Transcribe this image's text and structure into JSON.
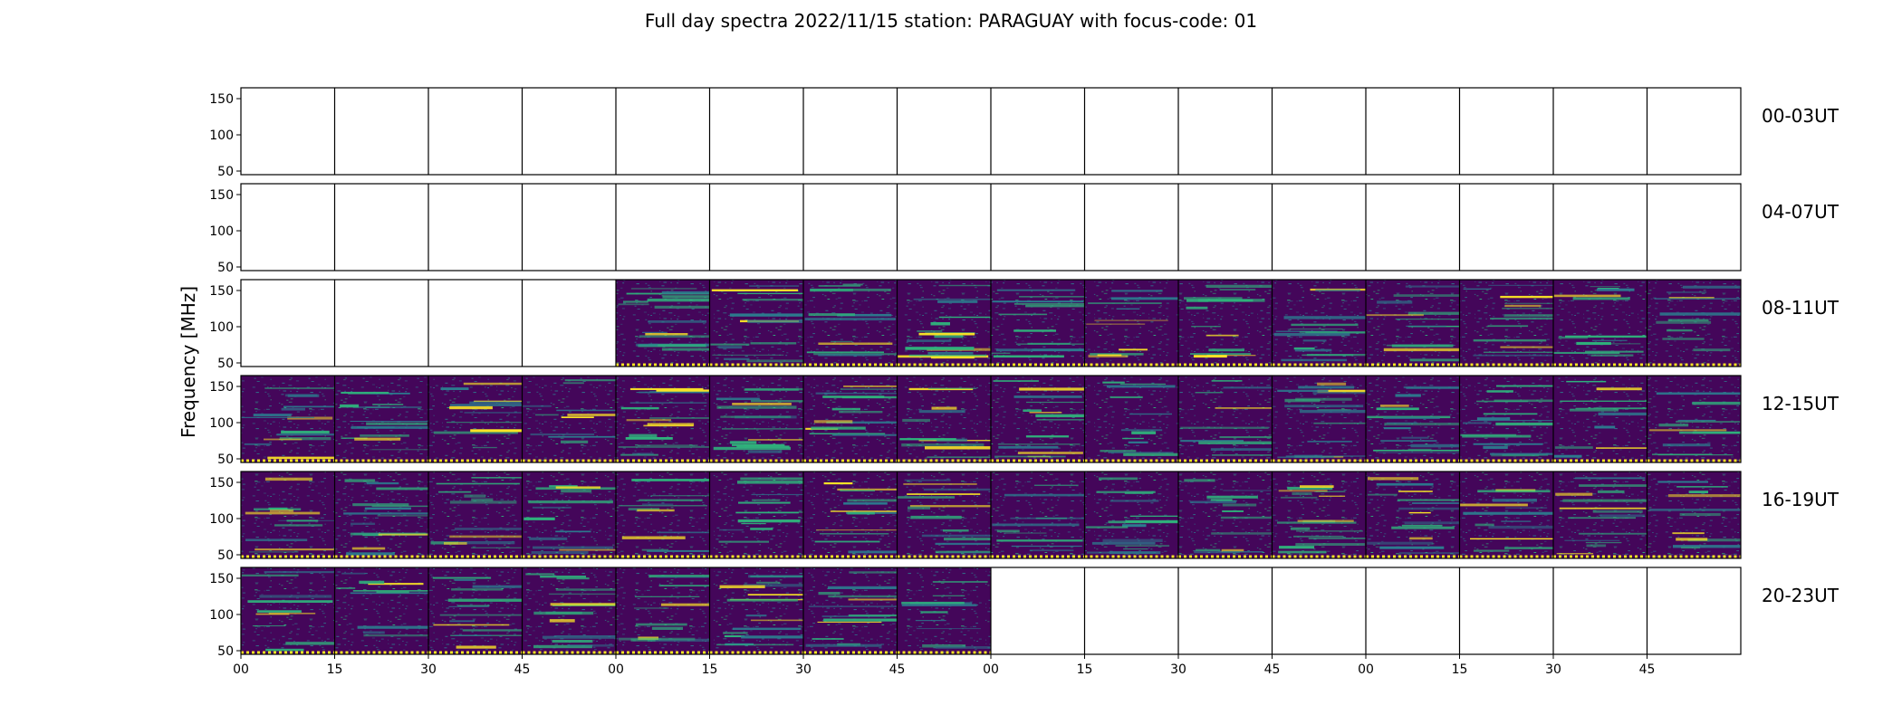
{
  "chart_data": {
    "type": "heatmap",
    "title": "Full day spectra 2022/11/15 station: PARAGUAY with focus-code: 01",
    "ylabel": "Frequency [MHz]",
    "y_ticks": [
      50,
      100,
      150
    ],
    "ylim": [
      45,
      165
    ],
    "x_tick_labels": [
      "00",
      "15",
      "30",
      "45",
      "00",
      "15",
      "30",
      "45",
      "00",
      "15",
      "30",
      "45",
      "00",
      "15",
      "30",
      "45"
    ],
    "panels_per_row": 16,
    "panel_minutes": 15,
    "rows": [
      {
        "label": "00-03UT",
        "data_present": [
          0,
          0,
          0,
          0,
          0,
          0,
          0,
          0,
          0,
          0,
          0,
          0,
          0,
          0,
          0,
          0
        ]
      },
      {
        "label": "04-07UT",
        "data_present": [
          0,
          0,
          0,
          0,
          0,
          0,
          0,
          0,
          0,
          0,
          0,
          0,
          0,
          0,
          0,
          0
        ]
      },
      {
        "label": "08-11UT",
        "data_present": [
          0,
          0,
          0,
          0,
          1,
          1,
          1,
          1,
          1,
          1,
          1,
          1,
          1,
          1,
          1,
          1
        ]
      },
      {
        "label": "12-15UT",
        "data_present": [
          1,
          1,
          1,
          1,
          1,
          1,
          1,
          1,
          1,
          1,
          1,
          1,
          1,
          1,
          1,
          1
        ]
      },
      {
        "label": "16-19UT",
        "data_present": [
          1,
          1,
          1,
          1,
          1,
          1,
          1,
          1,
          1,
          1,
          1,
          1,
          1,
          1,
          1,
          1
        ]
      },
      {
        "label": "20-23UT",
        "data_present": [
          1,
          1,
          1,
          1,
          1,
          1,
          1,
          1,
          0,
          0,
          0,
          0,
          0,
          0,
          0,
          0
        ]
      }
    ],
    "colors": {
      "background": "#44065a",
      "mid": "#2c7b8e",
      "high": "#2fb47c",
      "peak": "#fde725",
      "frame": "#000000"
    },
    "grid": false
  }
}
